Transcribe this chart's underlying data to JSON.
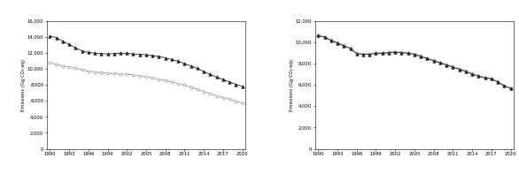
{
  "years": [
    1990,
    1991,
    1992,
    1993,
    1994,
    1995,
    1996,
    1997,
    1998,
    1999,
    2000,
    2001,
    2002,
    2003,
    2004,
    2005,
    2006,
    2007,
    2008,
    2009,
    2010,
    2011,
    2012,
    2013,
    2014,
    2015,
    2016,
    2017,
    2018,
    2019,
    2020
  ],
  "left_1996_AR2": [
    10750,
    10550,
    10350,
    10200,
    10050,
    9900,
    9700,
    9600,
    9500,
    9450,
    9400,
    9350,
    9300,
    9200,
    9100,
    9000,
    8850,
    8700,
    8550,
    8350,
    8150,
    7950,
    7700,
    7450,
    7150,
    6900,
    6600,
    6400,
    6200,
    5950,
    5700
  ],
  "left_2006_AR5": [
    14100,
    13900,
    13450,
    13050,
    12600,
    12250,
    12050,
    11950,
    11900,
    11850,
    11900,
    11950,
    11950,
    11850,
    11800,
    11750,
    11650,
    11550,
    11350,
    11150,
    10950,
    10650,
    10350,
    10050,
    9650,
    9300,
    8950,
    8650,
    8350,
    8050,
    7800
  ],
  "right_1996_AR2": [
    10650,
    10500,
    10200,
    9950,
    9700,
    9450,
    8950,
    8900,
    8900,
    9000,
    9000,
    9050,
    9100,
    9050,
    9000,
    8900,
    8700,
    8500,
    8300,
    8100,
    7900,
    7700,
    7500,
    7300,
    7050,
    6850,
    6700,
    6600,
    6300,
    5950,
    5700
  ],
  "right_2006_AR2": [
    10600,
    10450,
    10150,
    9900,
    9650,
    9400,
    8900,
    8850,
    8850,
    8950,
    8950,
    9000,
    9050,
    9000,
    8950,
    8850,
    8650,
    8450,
    8250,
    8050,
    7850,
    7650,
    7450,
    7250,
    7000,
    6800,
    6650,
    6550,
    6250,
    5900,
    5650
  ],
  "ylabel": "Emissions (Gg CO₂-eq)",
  "left_ylim": [
    0,
    16000
  ],
  "right_ylim": [
    0,
    12000
  ],
  "left_yticks": [
    0,
    2000,
    4000,
    6000,
    8000,
    10000,
    12000,
    14000,
    16000
  ],
  "right_yticks": [
    0,
    2000,
    4000,
    6000,
    8000,
    10000,
    12000
  ],
  "xticks": [
    1990,
    1993,
    1996,
    1999,
    2002,
    2005,
    2008,
    2011,
    2014,
    2017,
    2020
  ],
  "line_color_open": "#999999",
  "line_color_solid": "#222222",
  "bg_color": "#ffffff"
}
